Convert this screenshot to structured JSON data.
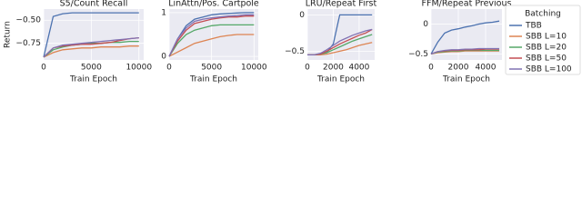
{
  "chart_data": [
    {
      "type": "line",
      "title": "S5/Count Recall",
      "xlabel": "Train Epoch",
      "ylabel": "Return",
      "legend_title": "Batching",
      "grid": true,
      "xlim": [
        0,
        10500
      ],
      "xticks": [
        0,
        5000,
        10000
      ],
      "ylim": [
        -0.93,
        -0.38
      ],
      "yticks": [
        {
          "value": -0.75,
          "label": "−0.75"
        },
        {
          "value": -0.5,
          "label": "−0.50"
        }
      ],
      "x": [
        0,
        1000,
        2000,
        3000,
        4000,
        5000,
        6000,
        7000,
        8000,
        9000,
        10000
      ],
      "series": [
        {
          "name": "TBB",
          "color": "#4c72b0",
          "values": [
            -0.9,
            -0.46,
            -0.43,
            -0.42,
            -0.42,
            -0.42,
            -0.42,
            -0.42,
            -0.42,
            -0.42,
            -0.42
          ]
        },
        {
          "name": "SBB L=10",
          "color": "#dd8452",
          "values": [
            -0.9,
            -0.85,
            -0.82,
            -0.81,
            -0.8,
            -0.8,
            -0.79,
            -0.79,
            -0.79,
            -0.78,
            -0.78
          ]
        },
        {
          "name": "SBB L=20",
          "color": "#55a868",
          "values": [
            -0.9,
            -0.82,
            -0.79,
            -0.77,
            -0.76,
            -0.75,
            -0.75,
            -0.74,
            -0.74,
            -0.73,
            -0.73
          ]
        },
        {
          "name": "SBB L=50",
          "color": "#c44e52",
          "values": [
            -0.9,
            -0.8,
            -0.78,
            -0.77,
            -0.76,
            -0.76,
            -0.75,
            -0.74,
            -0.72,
            -0.7,
            -0.69
          ]
        },
        {
          "name": "SBB L=100",
          "color": "#8172b3",
          "values": [
            -0.9,
            -0.8,
            -0.77,
            -0.76,
            -0.75,
            -0.74,
            -0.73,
            -0.72,
            -0.71,
            -0.7,
            -0.69
          ]
        }
      ]
    },
    {
      "type": "line",
      "title": "LinAttn/Pos. Cartpole",
      "xlabel": "Train Epoch",
      "grid": true,
      "xlim": [
        0,
        10500
      ],
      "xticks": [
        0,
        5000,
        10000
      ],
      "ylim": [
        -0.08,
        1.08
      ],
      "yticks": [
        0,
        1
      ],
      "x": [
        0,
        1000,
        2000,
        3000,
        4000,
        5000,
        6000,
        7000,
        8000,
        9000,
        10000
      ],
      "series": [
        {
          "color": "#4c72b0",
          "values": [
            0,
            0.4,
            0.7,
            0.85,
            0.9,
            0.95,
            0.97,
            0.98,
            0.99,
            1,
            1
          ]
        },
        {
          "color": "#dd8452",
          "values": [
            0,
            0.1,
            0.2,
            0.3,
            0.35,
            0.4,
            0.45,
            0.48,
            0.5,
            0.5,
            0.5
          ]
        },
        {
          "color": "#55a868",
          "values": [
            0,
            0.3,
            0.5,
            0.6,
            0.65,
            0.7,
            0.72,
            0.72,
            0.72,
            0.72,
            0.72
          ]
        },
        {
          "color": "#c44e52",
          "values": [
            0,
            0.35,
            0.6,
            0.75,
            0.8,
            0.85,
            0.88,
            0.9,
            0.9,
            0.92,
            0.92
          ]
        },
        {
          "color": "#8172b3",
          "values": [
            0,
            0.4,
            0.65,
            0.8,
            0.85,
            0.88,
            0.9,
            0.92,
            0.93,
            0.95,
            0.95
          ]
        }
      ]
    },
    {
      "type": "line",
      "title": "LRU/Repeat First",
      "xlabel": "Train Epoch",
      "grid": true,
      "xlim": [
        0,
        5200
      ],
      "xticks": [
        0,
        2000,
        4000
      ],
      "ylim": [
        -0.62,
        0.08
      ],
      "yticks": [
        {
          "value": -0.5,
          "label": "−0.5"
        },
        0
      ],
      "x": [
        0,
        500,
        1000,
        1500,
        2000,
        2500,
        3000,
        3500,
        4000,
        4500,
        5000
      ],
      "series": [
        {
          "color": "#4c72b0",
          "values": [
            -0.55,
            -0.55,
            -0.54,
            -0.52,
            -0.4,
            0,
            0,
            0,
            0,
            0,
            0
          ]
        },
        {
          "color": "#dd8452",
          "values": [
            -0.55,
            -0.55,
            -0.55,
            -0.54,
            -0.52,
            -0.5,
            -0.48,
            -0.45,
            -0.42,
            -0.4,
            -0.38
          ]
        },
        {
          "color": "#55a868",
          "values": [
            -0.55,
            -0.55,
            -0.54,
            -0.52,
            -0.48,
            -0.44,
            -0.4,
            -0.36,
            -0.33,
            -0.3,
            -0.27
          ]
        },
        {
          "color": "#c44e52",
          "values": [
            -0.55,
            -0.55,
            -0.54,
            -0.5,
            -0.45,
            -0.4,
            -0.36,
            -0.32,
            -0.28,
            -0.25,
            -0.2
          ]
        },
        {
          "color": "#8172b3",
          "values": [
            -0.55,
            -0.55,
            -0.53,
            -0.48,
            -0.42,
            -0.36,
            -0.32,
            -0.28,
            -0.25,
            -0.22,
            -0.2
          ]
        }
      ]
    },
    {
      "type": "line",
      "title": "FFM/Repeat Previous",
      "xlabel": "Train Epoch",
      "grid": true,
      "xlim": [
        0,
        5200
      ],
      "xticks": [
        0,
        2000,
        4000
      ],
      "ylim": [
        -0.6,
        0.25
      ],
      "yticks": [
        {
          "value": -0.5,
          "label": "−0.5"
        },
        0
      ],
      "x": [
        0,
        500,
        1000,
        1500,
        2000,
        2500,
        3000,
        3500,
        4000,
        4500,
        5000
      ],
      "series": [
        {
          "color": "#4c72b0",
          "values": [
            -0.5,
            -0.3,
            -0.15,
            -0.1,
            -0.08,
            -0.05,
            -0.03,
            0,
            0.02,
            0.03,
            0.05
          ]
        },
        {
          "color": "#dd8452",
          "values": [
            -0.5,
            -0.48,
            -0.47,
            -0.46,
            -0.46,
            -0.45,
            -0.45,
            -0.45,
            -0.45,
            -0.45,
            -0.45
          ]
        },
        {
          "color": "#55a868",
          "values": [
            -0.5,
            -0.47,
            -0.46,
            -0.45,
            -0.45,
            -0.44,
            -0.44,
            -0.44,
            -0.44,
            -0.44,
            -0.44
          ]
        },
        {
          "color": "#c44e52",
          "values": [
            -0.5,
            -0.46,
            -0.45,
            -0.44,
            -0.44,
            -0.43,
            -0.43,
            -0.43,
            -0.42,
            -0.42,
            -0.42
          ]
        },
        {
          "color": "#8172b3",
          "values": [
            -0.5,
            -0.46,
            -0.44,
            -0.43,
            -0.43,
            -0.42,
            -0.42,
            -0.41,
            -0.41,
            -0.41,
            -0.41
          ]
        }
      ]
    }
  ]
}
